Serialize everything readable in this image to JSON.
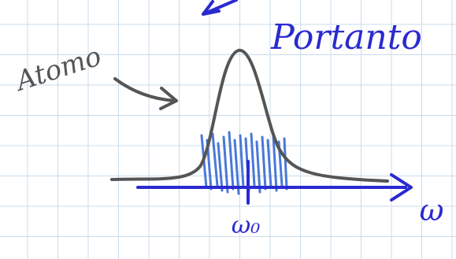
{
  "labels": {
    "atom": "Atomo",
    "therefore": "Portanto",
    "center_frequency": "ω₀",
    "axis": "ω"
  }
}
